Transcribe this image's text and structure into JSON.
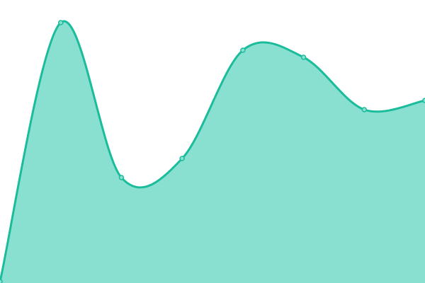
{
  "chart_data": {
    "type": "area",
    "title": "",
    "xlabel": "",
    "ylabel": "",
    "x": [
      0,
      1,
      2,
      3,
      4,
      5,
      6,
      7
    ],
    "values": [
      2,
      368,
      149,
      176,
      329,
      319,
      245,
      258
    ],
    "xlim": [
      0,
      7
    ],
    "ylim": [
      0,
      400
    ],
    "grid": false,
    "legend": "none",
    "curve": "smooth",
    "colors": {
      "line": "#1abc9c",
      "fill": "#89e0d0",
      "marker_fill": "#89e0d0"
    }
  }
}
